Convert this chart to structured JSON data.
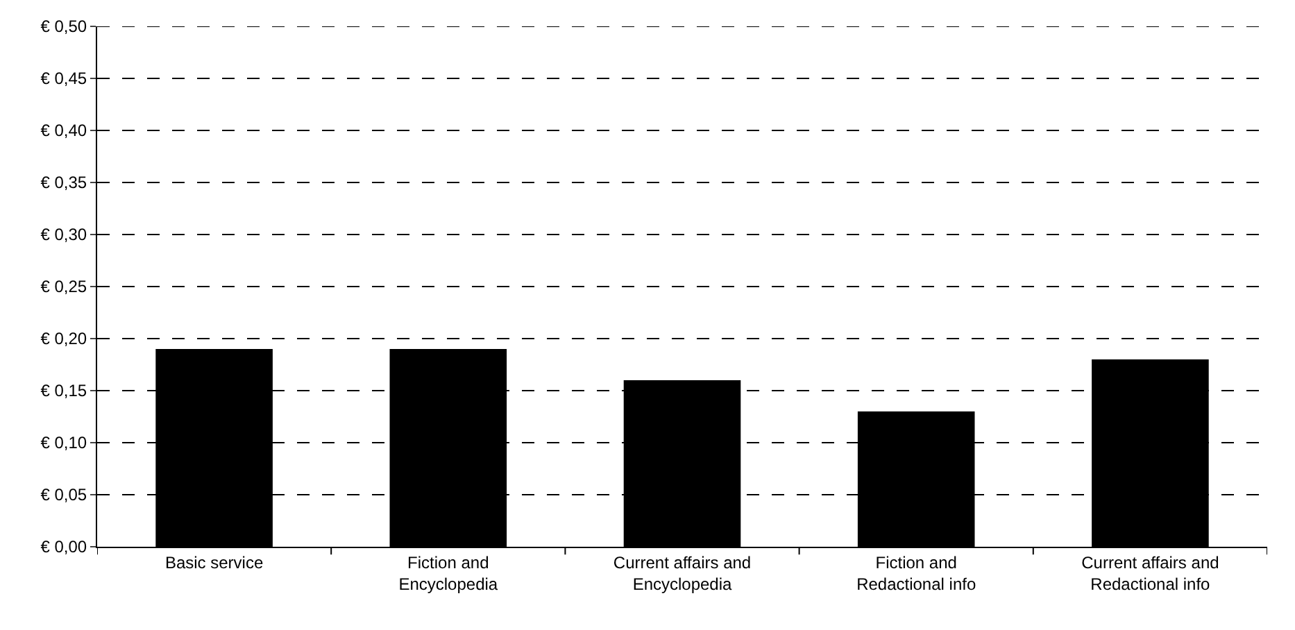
{
  "chart_data": {
    "type": "bar",
    "categories": [
      "Basic service",
      "Fiction and Encyclopedia",
      "Current affairs and Encyclopedia",
      "Fiction and Redactional info",
      "Current affairs and Redactional info"
    ],
    "values": [
      0.19,
      0.19,
      0.16,
      0.13,
      0.18
    ],
    "color": "#000000",
    "ylim": [
      0,
      0.5
    ],
    "yticks": [
      {
        "value": 0,
        "label": "€ 0,00"
      },
      {
        "value": 0.05,
        "label": "€ 0,05"
      },
      {
        "value": 0.1,
        "label": "€ 0,10"
      },
      {
        "value": 0.15,
        "label": "€ 0,15"
      },
      {
        "value": 0.2,
        "label": "€ 0,20"
      },
      {
        "value": 0.25,
        "label": "€ 0,25"
      },
      {
        "value": 0.3,
        "label": "€ 0,30"
      },
      {
        "value": 0.35,
        "label": "€ 0,35"
      },
      {
        "value": 0.4,
        "label": "€ 0,40"
      },
      {
        "value": 0.45,
        "label": "€ 0,45"
      },
      {
        "value": 0.5,
        "label": "€ 0,50"
      }
    ],
    "grid": "y"
  }
}
